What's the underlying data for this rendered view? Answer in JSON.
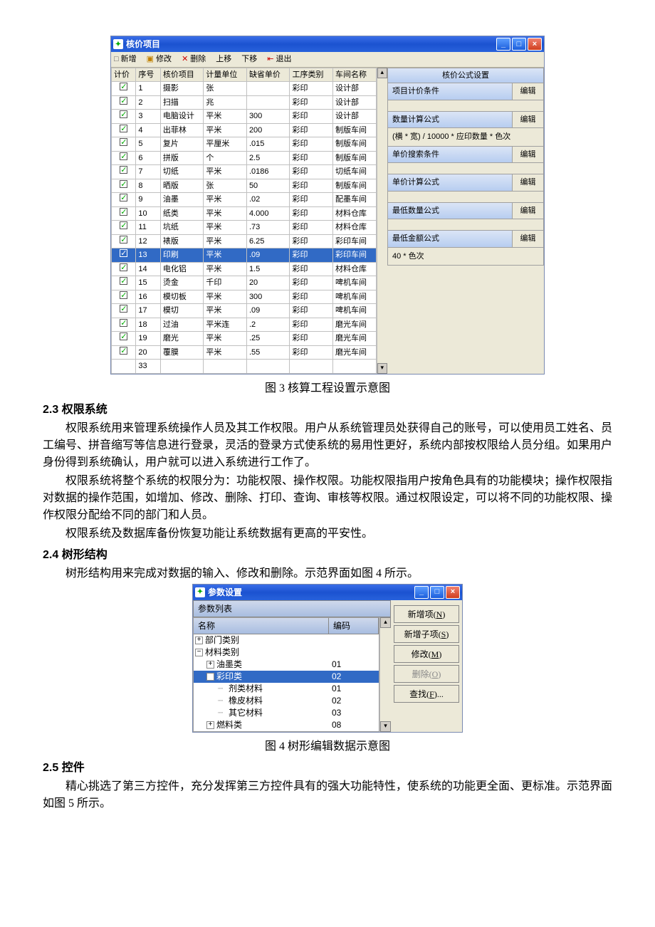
{
  "fig3": {
    "title": "核价项目",
    "toolbar": [
      "新增",
      "修改",
      "删除",
      "上移",
      "下移",
      "退出"
    ],
    "toolbar_icons": [
      "□",
      "▣",
      "✕",
      "",
      "",
      ""
    ],
    "exit_icon": "⇤",
    "columns": [
      "计价",
      "序号",
      "核价项目",
      "计量单位",
      "缺省单价",
      "工序类别",
      "车间名称"
    ],
    "rows": [
      {
        "n": "1",
        "item": "摄影",
        "unit": "张",
        "price": "",
        "proc": "彩印",
        "shop": "设计部"
      },
      {
        "n": "2",
        "item": "扫描",
        "unit": "兆",
        "price": "",
        "proc": "彩印",
        "shop": "设计部"
      },
      {
        "n": "3",
        "item": "电脑设计",
        "unit": "平米",
        "price": "300",
        "proc": "彩印",
        "shop": "设计部"
      },
      {
        "n": "4",
        "item": "出菲林",
        "unit": "平米",
        "price": "200",
        "proc": "彩印",
        "shop": "制版车间"
      },
      {
        "n": "5",
        "item": "复片",
        "unit": "平厘米",
        "price": ".015",
        "proc": "彩印",
        "shop": "制版车间"
      },
      {
        "n": "6",
        "item": "拼版",
        "unit": "个",
        "price": "2.5",
        "proc": "彩印",
        "shop": "制版车间"
      },
      {
        "n": "7",
        "item": "切纸",
        "unit": "平米",
        "price": ".0186",
        "proc": "彩印",
        "shop": "切纸车间"
      },
      {
        "n": "8",
        "item": "晒版",
        "unit": "张",
        "price": "50",
        "proc": "彩印",
        "shop": "制版车间"
      },
      {
        "n": "9",
        "item": "油墨",
        "unit": "平米",
        "price": ".02",
        "proc": "彩印",
        "shop": "配墨车间"
      },
      {
        "n": "10",
        "item": "纸类",
        "unit": "平米",
        "price": "4.000",
        "proc": "彩印",
        "shop": "材料仓库"
      },
      {
        "n": "11",
        "item": "坑纸",
        "unit": "平米",
        "price": ".73",
        "proc": "彩印",
        "shop": "材料仓库"
      },
      {
        "n": "12",
        "item": "裱版",
        "unit": "平米",
        "price": "6.25",
        "proc": "彩印",
        "shop": "彩印车间"
      },
      {
        "n": "13",
        "item": "印刷",
        "unit": "平米",
        "price": ".09",
        "proc": "彩印",
        "shop": "彩印车间",
        "sel": true
      },
      {
        "n": "14",
        "item": "电化铝",
        "unit": "平米",
        "price": "1.5",
        "proc": "彩印",
        "shop": "材料仓库"
      },
      {
        "n": "15",
        "item": "烫金",
        "unit": "千印",
        "price": "20",
        "proc": "彩印",
        "shop": "啤机车间"
      },
      {
        "n": "16",
        "item": "模切板",
        "unit": "平米",
        "price": "300",
        "proc": "彩印",
        "shop": "啤机车间"
      },
      {
        "n": "17",
        "item": "模切",
        "unit": "平米",
        "price": ".09",
        "proc": "彩印",
        "shop": "啤机车间"
      },
      {
        "n": "18",
        "item": "过油",
        "unit": "平米连",
        "price": ".2",
        "proc": "彩印",
        "shop": "磨光车间"
      },
      {
        "n": "19",
        "item": "磨光",
        "unit": "平米",
        "price": ".25",
        "proc": "彩印",
        "shop": "磨光车间"
      },
      {
        "n": "20",
        "item": "覆膜",
        "unit": "平米",
        "price": ".55",
        "proc": "彩印",
        "shop": "磨光车间"
      }
    ],
    "footer_total": "33",
    "panel_title": "核价公式设置",
    "panel_sections": [
      {
        "label": "项目计价条件",
        "btn": "编辑",
        "value": ""
      },
      {
        "label": "数量计算公式",
        "btn": "编辑",
        "value": "(横 * 宽) / 10000 * 应印数量 * 色次"
      },
      {
        "label": "单价搜索条件",
        "btn": "编辑",
        "value": ""
      },
      {
        "label": "单价计算公式",
        "btn": "编辑",
        "value": ""
      },
      {
        "label": "最低数量公式",
        "btn": "编辑",
        "value": ""
      },
      {
        "label": "最低金额公式",
        "btn": "编辑",
        "value": "40 * 色次"
      }
    ],
    "caption": "图 3 核算工程设置示意图"
  },
  "sec23": {
    "heading": "2.3 权限系统",
    "p1": "权限系统用来管理系统操作人员及其工作权限。用户从系统管理员处获得自己的账号，可以使用员工姓名、员工编号、拼音缩写等信息进行登录，灵活的登录方式使系统的易用性更好，系统内部按权限给人员分组。如果用户身份得到系统确认，用户就可以进入系统进行工作了。",
    "p2": "权限系统将整个系统的权限分为：功能权限、操作权限。功能权限指用户按角色具有的功能模块；操作权限指对数据的操作范围，如增加、修改、删除、打印、查询、审核等权限。通过权限设定，可以将不同的功能权限、操作权限分配给不同的部门和人员。",
    "p3": "权限系统及数据库备份恢复功能让系统数据有更高的平安性。"
  },
  "sec24": {
    "heading": "2.4 树形结构",
    "p1": "树形结构用来完成对数据的输入、修改和删除。示范界面如图 4 所示。"
  },
  "fig4": {
    "title": "参数设置",
    "list_title": "参数列表",
    "col_name": "名称",
    "col_code": "编码",
    "rows": [
      {
        "indent": 0,
        "exp": "+",
        "label": "部门类别",
        "code": ""
      },
      {
        "indent": 0,
        "exp": "−",
        "label": "材料类别",
        "code": ""
      },
      {
        "indent": 1,
        "exp": "+",
        "label": "油墨类",
        "code": "01"
      },
      {
        "indent": 1,
        "exp": "−",
        "label": "彩印类",
        "code": "02",
        "sel": true
      },
      {
        "indent": 2,
        "exp": "",
        "label": "剂类材料",
        "code": "01"
      },
      {
        "indent": 2,
        "exp": "",
        "label": "橡皮材料",
        "code": "02"
      },
      {
        "indent": 2,
        "exp": "",
        "label": "其它材料",
        "code": "03"
      },
      {
        "indent": 1,
        "exp": "+",
        "label": "燃料类",
        "code": "08"
      }
    ],
    "buttons": [
      {
        "label": "新增项(",
        "ul": "N",
        "tail": ")"
      },
      {
        "label": "新增子项(",
        "ul": "S",
        "tail": ")"
      },
      {
        "label": "修改(",
        "ul": "M",
        "tail": ")"
      },
      {
        "label": "删除(",
        "ul": "O",
        "tail": ")",
        "disabled": true
      },
      {
        "label": "查找(",
        "ul": "F",
        "tail": ")..."
      }
    ],
    "caption": "图 4 树形编辑数据示意图"
  },
  "sec25": {
    "heading": "2.5 控件",
    "p1": "精心挑选了第三方控件，充分发挥第三方控件具有的强大功能特性，使系统的功能更全面、更标准。示范界面如图 5 所示。"
  }
}
